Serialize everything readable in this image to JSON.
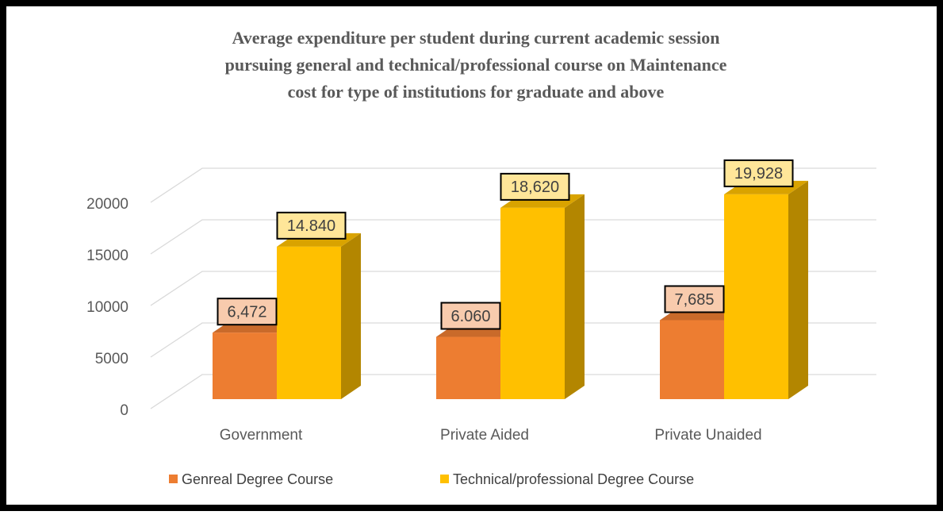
{
  "chart_data": {
    "type": "bar3d",
    "title": [
      "Average expenditure per student during current academic session",
      "pursuing general and technical/professional course on Maintenance",
      "cost for type of institutions for graduate and above"
    ],
    "categories": [
      "Government",
      "Private Aided",
      "Private Unaided"
    ],
    "series": [
      {
        "name": "Genreal Degree Course",
        "color": "#ed7d31",
        "values": [
          6472,
          6060,
          7685
        ],
        "value_labels": [
          "6,472",
          "6.060",
          "7,685"
        ]
      },
      {
        "name": "Technical/professional Degree Course",
        "color": "#ffc000",
        "values": [
          14840,
          18620,
          19928
        ],
        "value_labels": [
          "14.840",
          "18,620",
          "19,928"
        ]
      }
    ],
    "ylim": [
      0,
      20000
    ],
    "yticks": [
      0,
      5000,
      10000,
      15000,
      20000
    ],
    "grid": true,
    "legend": "bottom"
  }
}
